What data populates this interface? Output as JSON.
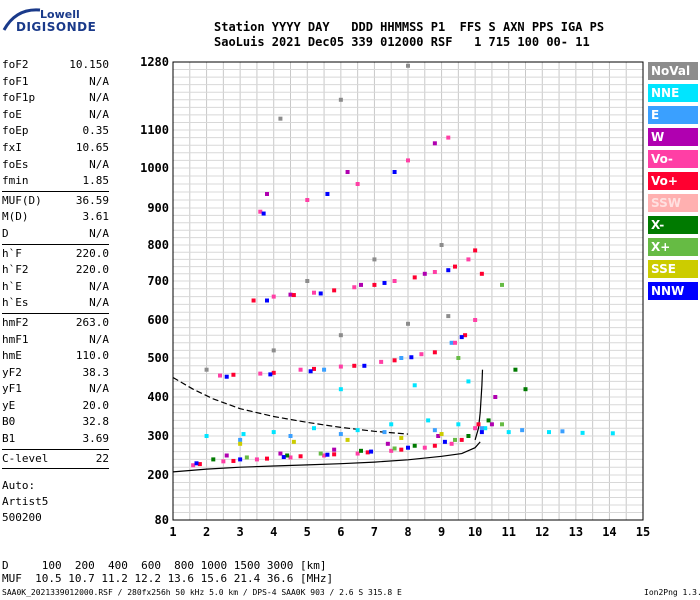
{
  "header": {
    "brand_top": "Lowell",
    "brand_bottom": "DIGISONDE",
    "line1": "Station YYYY DAY   DDD HHMMSS P1  FFS S AXN PPS IGA PS",
    "line2": "SaoLuis 2021 Dec05 339 012000 RSF   1 715 100 00- 11"
  },
  "params": {
    "group1": [
      {
        "label": "foF2",
        "value": "10.150"
      },
      {
        "label": "foF1",
        "value": "N/A"
      },
      {
        "label": "foF1p",
        "value": "N/A"
      },
      {
        "label": "foE",
        "value": "N/A"
      },
      {
        "label": "foEp",
        "value": "0.35"
      },
      {
        "label": "fxI",
        "value": "10.65"
      },
      {
        "label": "foEs",
        "value": "N/A"
      },
      {
        "label": "fmin",
        "value": "1.85"
      }
    ],
    "group2": [
      {
        "label": "MUF(D)",
        "value": "36.59"
      },
      {
        "label": "M(D)",
        "value": "3.61"
      },
      {
        "label": "D",
        "value": "N/A"
      }
    ],
    "group3": [
      {
        "label": "h`F",
        "value": "220.0"
      },
      {
        "label": "h`F2",
        "value": "220.0"
      },
      {
        "label": "h`E",
        "value": "N/A"
      },
      {
        "label": "h`Es",
        "value": "N/A"
      }
    ],
    "group4": [
      {
        "label": "hmF2",
        "value": "263.0"
      },
      {
        "label": "hmF1",
        "value": "N/A"
      },
      {
        "label": "hmE",
        "value": "110.0"
      },
      {
        "label": "yF2",
        "value": "38.3"
      },
      {
        "label": "yF1",
        "value": "N/A"
      },
      {
        "label": "yE",
        "value": "20.0"
      },
      {
        "label": "B0",
        "value": "32.8"
      },
      {
        "label": "B1",
        "value": "3.69"
      }
    ],
    "group5": [
      {
        "label": "C-level",
        "value": "22"
      }
    ],
    "auto_lines": [
      "Auto:",
      "Artist5",
      "500200"
    ]
  },
  "legend": [
    {
      "label": "NoVal",
      "color": "#8c8c8c"
    },
    {
      "label": "NNE",
      "color": "#00e5ff"
    },
    {
      "label": "E",
      "color": "#3aa0ff"
    },
    {
      "label": "W",
      "color": "#b000b0"
    },
    {
      "label": "Vo-",
      "color": "#ff3fa5"
    },
    {
      "label": "Vo+",
      "color": "#ff0030"
    },
    {
      "label": "SSW",
      "color": "#ffb0b0"
    },
    {
      "label": "X-",
      "color": "#007a00"
    },
    {
      "label": "X+",
      "color": "#66bb44"
    },
    {
      "label": "SSE",
      "color": "#cccc00"
    },
    {
      "label": "NNW",
      "color": "#0000ff"
    }
  ],
  "chart_data": {
    "type": "scatter",
    "xlim": [
      1,
      15
    ],
    "ylim": [
      80,
      1280
    ],
    "x_ticks": [
      1,
      2,
      3,
      4,
      5,
      6,
      7,
      8,
      9,
      10,
      11,
      12,
      13,
      14,
      15
    ],
    "y_ticks": [
      80,
      200,
      300,
      400,
      500,
      600,
      700,
      800,
      900,
      1000,
      1100,
      1280
    ],
    "grid": true,
    "series": [
      {
        "name": "NNE",
        "color": "#00e5ff",
        "points": [
          [
            2.0,
            300
          ],
          [
            3.1,
            305
          ],
          [
            4.0,
            310
          ],
          [
            5.2,
            320
          ],
          [
            6.5,
            315
          ],
          [
            7.5,
            330
          ],
          [
            8.6,
            340
          ],
          [
            9.5,
            330
          ],
          [
            10.3,
            320
          ],
          [
            11.0,
            310
          ],
          [
            12.2,
            310
          ],
          [
            13.2,
            308
          ],
          [
            14.1,
            307
          ],
          [
            6.0,
            420
          ],
          [
            8.2,
            430
          ],
          [
            9.8,
            440
          ]
        ]
      },
      {
        "name": "E",
        "color": "#3aa0ff",
        "points": [
          [
            3.0,
            290
          ],
          [
            4.5,
            300
          ],
          [
            6.0,
            305
          ],
          [
            7.3,
            310
          ],
          [
            8.8,
            315
          ],
          [
            10.2,
            320
          ],
          [
            11.4,
            315
          ],
          [
            12.6,
            312
          ],
          [
            5.5,
            470
          ],
          [
            7.8,
            500
          ],
          [
            9.3,
            540
          ]
        ]
      },
      {
        "name": "W",
        "color": "#b000b0",
        "points": [
          [
            2.6,
            250
          ],
          [
            4.2,
            255
          ],
          [
            5.8,
            265
          ],
          [
            7.4,
            280
          ],
          [
            8.9,
            300
          ],
          [
            10.5,
            330
          ],
          [
            4.5,
            665
          ],
          [
            6.6,
            690
          ],
          [
            8.5,
            720
          ],
          [
            10.6,
            400
          ],
          [
            3.8,
            935
          ],
          [
            6.2,
            990
          ],
          [
            8.8,
            1065
          ]
        ]
      },
      {
        "name": "Vo-",
        "color": "#ff3fa5",
        "points": [
          [
            1.6,
            225
          ],
          [
            2.5,
            235
          ],
          [
            3.5,
            240
          ],
          [
            4.5,
            245
          ],
          [
            5.5,
            250
          ],
          [
            6.5,
            255
          ],
          [
            7.5,
            262
          ],
          [
            8.5,
            270
          ],
          [
            9.3,
            280
          ],
          [
            10.0,
            320
          ],
          [
            2.4,
            455
          ],
          [
            3.6,
            460
          ],
          [
            4.8,
            470
          ],
          [
            6.0,
            478
          ],
          [
            7.2,
            490
          ],
          [
            8.4,
            510
          ],
          [
            9.4,
            540
          ],
          [
            10.0,
            600
          ],
          [
            4.0,
            660
          ],
          [
            5.2,
            670
          ],
          [
            6.4,
            684
          ],
          [
            7.6,
            700
          ],
          [
            8.8,
            725
          ],
          [
            9.8,
            760
          ],
          [
            3.6,
            890
          ],
          [
            5.0,
            920
          ],
          [
            6.5,
            960
          ],
          [
            8.0,
            1020
          ],
          [
            9.2,
            1080
          ]
        ]
      },
      {
        "name": "Vo+",
        "color": "#ff0030",
        "points": [
          [
            1.8,
            228
          ],
          [
            2.8,
            236
          ],
          [
            3.8,
            242
          ],
          [
            4.8,
            248
          ],
          [
            5.8,
            253
          ],
          [
            6.8,
            258
          ],
          [
            7.8,
            265
          ],
          [
            8.8,
            275
          ],
          [
            9.6,
            290
          ],
          [
            10.1,
            330
          ],
          [
            2.8,
            457
          ],
          [
            4.0,
            462
          ],
          [
            5.2,
            472
          ],
          [
            6.4,
            480
          ],
          [
            7.6,
            494
          ],
          [
            8.8,
            515
          ],
          [
            9.7,
            560
          ],
          [
            10.2,
            720
          ],
          [
            3.4,
            650
          ],
          [
            4.6,
            664
          ],
          [
            5.8,
            676
          ],
          [
            7.0,
            690
          ],
          [
            8.2,
            710
          ],
          [
            9.4,
            740
          ],
          [
            10.0,
            785
          ]
        ]
      },
      {
        "name": "X-",
        "color": "#007a00",
        "points": [
          [
            2.2,
            240
          ],
          [
            4.4,
            250
          ],
          [
            6.6,
            262
          ],
          [
            8.2,
            275
          ],
          [
            9.8,
            300
          ],
          [
            10.4,
            340
          ],
          [
            11.2,
            470
          ],
          [
            11.5,
            420
          ]
        ]
      },
      {
        "name": "X+",
        "color": "#66bb44",
        "points": [
          [
            3.2,
            245
          ],
          [
            5.4,
            255
          ],
          [
            7.6,
            268
          ],
          [
            9.4,
            290
          ],
          [
            10.8,
            330
          ],
          [
            9.5,
            500
          ],
          [
            10.8,
            690
          ]
        ]
      },
      {
        "name": "SSE",
        "color": "#cccc00",
        "points": [
          [
            3.0,
            280
          ],
          [
            4.6,
            285
          ],
          [
            6.2,
            290
          ],
          [
            7.8,
            295
          ],
          [
            9.0,
            305
          ]
        ]
      },
      {
        "name": "NNW",
        "color": "#0000ff",
        "points": [
          [
            1.7,
            230
          ],
          [
            3.0,
            240
          ],
          [
            4.3,
            246
          ],
          [
            5.6,
            252
          ],
          [
            6.9,
            260
          ],
          [
            8.0,
            270
          ],
          [
            9.1,
            285
          ],
          [
            10.2,
            310
          ],
          [
            2.6,
            452
          ],
          [
            3.9,
            458
          ],
          [
            5.1,
            466
          ],
          [
            6.7,
            480
          ],
          [
            8.1,
            502
          ],
          [
            9.6,
            555
          ],
          [
            3.8,
            650
          ],
          [
            5.4,
            668
          ],
          [
            7.3,
            695
          ],
          [
            9.2,
            730
          ],
          [
            3.7,
            885
          ],
          [
            5.6,
            935
          ],
          [
            7.6,
            990
          ]
        ]
      },
      {
        "name": "NoVal",
        "color": "#8c8c8c",
        "points": [
          [
            2.0,
            470
          ],
          [
            4.0,
            520
          ],
          [
            6.0,
            560
          ],
          [
            8.0,
            590
          ],
          [
            9.2,
            610
          ],
          [
            5.0,
            700
          ],
          [
            7.0,
            760
          ],
          [
            9.0,
            800
          ],
          [
            4.2,
            1130
          ],
          [
            6.0,
            1180
          ],
          [
            8.0,
            1270
          ]
        ]
      }
    ],
    "curves": [
      {
        "style": "solid",
        "color": "#000000",
        "points": [
          [
            1,
            208
          ],
          [
            2,
            215
          ],
          [
            3,
            220
          ],
          [
            4,
            223
          ],
          [
            5,
            226
          ],
          [
            6,
            229
          ],
          [
            7,
            233
          ],
          [
            8,
            239
          ],
          [
            9,
            248
          ],
          [
            9.6,
            255
          ],
          [
            10.0,
            270
          ],
          [
            10.15,
            285
          ]
        ]
      },
      {
        "style": "dashed",
        "color": "#000000",
        "points": [
          [
            1,
            450
          ],
          [
            1.6,
            420
          ],
          [
            2.2,
            395
          ],
          [
            3,
            370
          ],
          [
            4,
            350
          ],
          [
            5,
            335
          ],
          [
            6,
            322
          ],
          [
            7,
            312
          ],
          [
            8,
            305
          ]
        ]
      },
      {
        "style": "solid",
        "color": "#000000",
        "points": [
          [
            10.0,
            290
          ],
          [
            10.1,
            320
          ],
          [
            10.15,
            360
          ],
          [
            10.2,
            430
          ],
          [
            10.22,
            470
          ]
        ]
      }
    ]
  },
  "footer": {
    "d_row": "D     100  200  400  600  800 1000 1500 3000 [km]",
    "muf_row": "MUF  10.5 10.7 11.2 12.2 13.6 15.6 21.4 36.6 [MHz]",
    "file": "SAA0K_2021339012000.RSF / 280fx256h 50 kHz 5.0 km / DPS-4 SAA0K 903 / 2.6 S 315.8 E",
    "version": "Ion2Png 1.3.17"
  }
}
